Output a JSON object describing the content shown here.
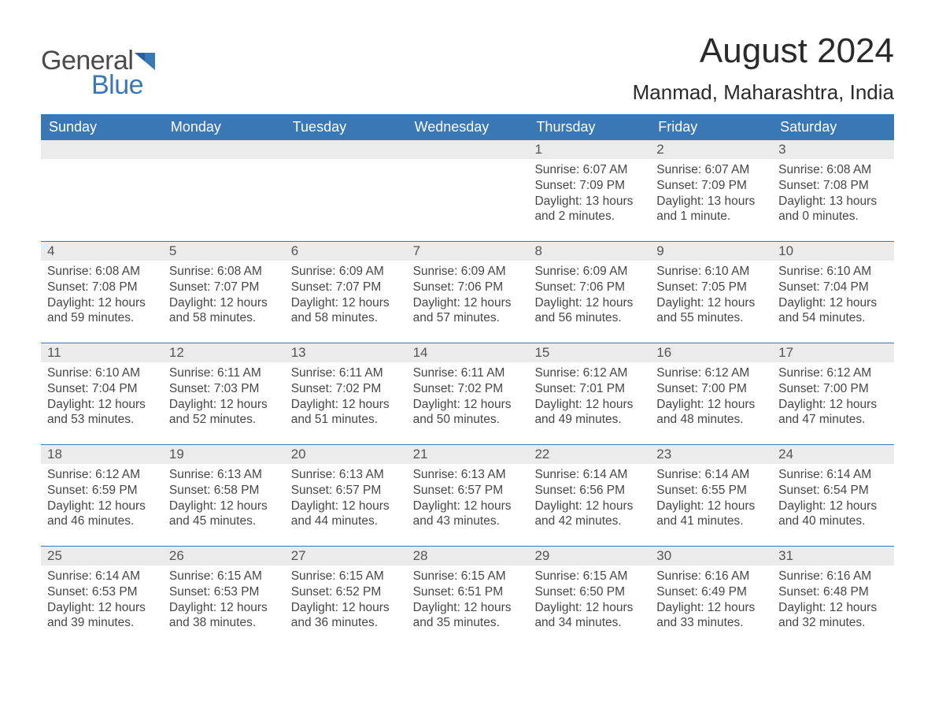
{
  "logo": {
    "text1": "General",
    "text2": "Blue",
    "accent_color": "#3a77b5"
  },
  "title": "August 2024",
  "location": "Manmad, Maharashtra, India",
  "colors": {
    "header_bg": "#3a77b5",
    "header_text": "#ffffff",
    "date_bar_bg": "#ebebeb",
    "date_text": "#555555",
    "body_text": "#464646",
    "page_bg": "#ffffff",
    "row_border": "#3a77b5"
  },
  "typography": {
    "title_fontsize": 44,
    "location_fontsize": 26,
    "dayheader_fontsize": 18,
    "date_fontsize": 17,
    "body_fontsize": 15.5,
    "font_family": "Arial"
  },
  "day_headers": [
    "Sunday",
    "Monday",
    "Tuesday",
    "Wednesday",
    "Thursday",
    "Friday",
    "Saturday"
  ],
  "weeks": [
    [
      {
        "empty": true
      },
      {
        "empty": true
      },
      {
        "empty": true
      },
      {
        "empty": true
      },
      {
        "date": "1",
        "sunrise": "Sunrise: 6:07 AM",
        "sunset": "Sunset: 7:09 PM",
        "dl1": "Daylight: 13 hours",
        "dl2": "and 2 minutes."
      },
      {
        "date": "2",
        "sunrise": "Sunrise: 6:07 AM",
        "sunset": "Sunset: 7:09 PM",
        "dl1": "Daylight: 13 hours",
        "dl2": "and 1 minute."
      },
      {
        "date": "3",
        "sunrise": "Sunrise: 6:08 AM",
        "sunset": "Sunset: 7:08 PM",
        "dl1": "Daylight: 13 hours",
        "dl2": "and 0 minutes."
      }
    ],
    [
      {
        "date": "4",
        "sunrise": "Sunrise: 6:08 AM",
        "sunset": "Sunset: 7:08 PM",
        "dl1": "Daylight: 12 hours",
        "dl2": "and 59 minutes."
      },
      {
        "date": "5",
        "sunrise": "Sunrise: 6:08 AM",
        "sunset": "Sunset: 7:07 PM",
        "dl1": "Daylight: 12 hours",
        "dl2": "and 58 minutes."
      },
      {
        "date": "6",
        "sunrise": "Sunrise: 6:09 AM",
        "sunset": "Sunset: 7:07 PM",
        "dl1": "Daylight: 12 hours",
        "dl2": "and 58 minutes."
      },
      {
        "date": "7",
        "sunrise": "Sunrise: 6:09 AM",
        "sunset": "Sunset: 7:06 PM",
        "dl1": "Daylight: 12 hours",
        "dl2": "and 57 minutes."
      },
      {
        "date": "8",
        "sunrise": "Sunrise: 6:09 AM",
        "sunset": "Sunset: 7:06 PM",
        "dl1": "Daylight: 12 hours",
        "dl2": "and 56 minutes."
      },
      {
        "date": "9",
        "sunrise": "Sunrise: 6:10 AM",
        "sunset": "Sunset: 7:05 PM",
        "dl1": "Daylight: 12 hours",
        "dl2": "and 55 minutes."
      },
      {
        "date": "10",
        "sunrise": "Sunrise: 6:10 AM",
        "sunset": "Sunset: 7:04 PM",
        "dl1": "Daylight: 12 hours",
        "dl2": "and 54 minutes."
      }
    ],
    [
      {
        "date": "11",
        "sunrise": "Sunrise: 6:10 AM",
        "sunset": "Sunset: 7:04 PM",
        "dl1": "Daylight: 12 hours",
        "dl2": "and 53 minutes."
      },
      {
        "date": "12",
        "sunrise": "Sunrise: 6:11 AM",
        "sunset": "Sunset: 7:03 PM",
        "dl1": "Daylight: 12 hours",
        "dl2": "and 52 minutes."
      },
      {
        "date": "13",
        "sunrise": "Sunrise: 6:11 AM",
        "sunset": "Sunset: 7:02 PM",
        "dl1": "Daylight: 12 hours",
        "dl2": "and 51 minutes."
      },
      {
        "date": "14",
        "sunrise": "Sunrise: 6:11 AM",
        "sunset": "Sunset: 7:02 PM",
        "dl1": "Daylight: 12 hours",
        "dl2": "and 50 minutes."
      },
      {
        "date": "15",
        "sunrise": "Sunrise: 6:12 AM",
        "sunset": "Sunset: 7:01 PM",
        "dl1": "Daylight: 12 hours",
        "dl2": "and 49 minutes."
      },
      {
        "date": "16",
        "sunrise": "Sunrise: 6:12 AM",
        "sunset": "Sunset: 7:00 PM",
        "dl1": "Daylight: 12 hours",
        "dl2": "and 48 minutes."
      },
      {
        "date": "17",
        "sunrise": "Sunrise: 6:12 AM",
        "sunset": "Sunset: 7:00 PM",
        "dl1": "Daylight: 12 hours",
        "dl2": "and 47 minutes."
      }
    ],
    [
      {
        "date": "18",
        "sunrise": "Sunrise: 6:12 AM",
        "sunset": "Sunset: 6:59 PM",
        "dl1": "Daylight: 12 hours",
        "dl2": "and 46 minutes."
      },
      {
        "date": "19",
        "sunrise": "Sunrise: 6:13 AM",
        "sunset": "Sunset: 6:58 PM",
        "dl1": "Daylight: 12 hours",
        "dl2": "and 45 minutes."
      },
      {
        "date": "20",
        "sunrise": "Sunrise: 6:13 AM",
        "sunset": "Sunset: 6:57 PM",
        "dl1": "Daylight: 12 hours",
        "dl2": "and 44 minutes."
      },
      {
        "date": "21",
        "sunrise": "Sunrise: 6:13 AM",
        "sunset": "Sunset: 6:57 PM",
        "dl1": "Daylight: 12 hours",
        "dl2": "and 43 minutes."
      },
      {
        "date": "22",
        "sunrise": "Sunrise: 6:14 AM",
        "sunset": "Sunset: 6:56 PM",
        "dl1": "Daylight: 12 hours",
        "dl2": "and 42 minutes."
      },
      {
        "date": "23",
        "sunrise": "Sunrise: 6:14 AM",
        "sunset": "Sunset: 6:55 PM",
        "dl1": "Daylight: 12 hours",
        "dl2": "and 41 minutes."
      },
      {
        "date": "24",
        "sunrise": "Sunrise: 6:14 AM",
        "sunset": "Sunset: 6:54 PM",
        "dl1": "Daylight: 12 hours",
        "dl2": "and 40 minutes."
      }
    ],
    [
      {
        "date": "25",
        "sunrise": "Sunrise: 6:14 AM",
        "sunset": "Sunset: 6:53 PM",
        "dl1": "Daylight: 12 hours",
        "dl2": "and 39 minutes."
      },
      {
        "date": "26",
        "sunrise": "Sunrise: 6:15 AM",
        "sunset": "Sunset: 6:53 PM",
        "dl1": "Daylight: 12 hours",
        "dl2": "and 38 minutes."
      },
      {
        "date": "27",
        "sunrise": "Sunrise: 6:15 AM",
        "sunset": "Sunset: 6:52 PM",
        "dl1": "Daylight: 12 hours",
        "dl2": "and 36 minutes."
      },
      {
        "date": "28",
        "sunrise": "Sunrise: 6:15 AM",
        "sunset": "Sunset: 6:51 PM",
        "dl1": "Daylight: 12 hours",
        "dl2": "and 35 minutes."
      },
      {
        "date": "29",
        "sunrise": "Sunrise: 6:15 AM",
        "sunset": "Sunset: 6:50 PM",
        "dl1": "Daylight: 12 hours",
        "dl2": "and 34 minutes."
      },
      {
        "date": "30",
        "sunrise": "Sunrise: 6:16 AM",
        "sunset": "Sunset: 6:49 PM",
        "dl1": "Daylight: 12 hours",
        "dl2": "and 33 minutes."
      },
      {
        "date": "31",
        "sunrise": "Sunrise: 6:16 AM",
        "sunset": "Sunset: 6:48 PM",
        "dl1": "Daylight: 12 hours",
        "dl2": "and 32 minutes."
      }
    ]
  ]
}
